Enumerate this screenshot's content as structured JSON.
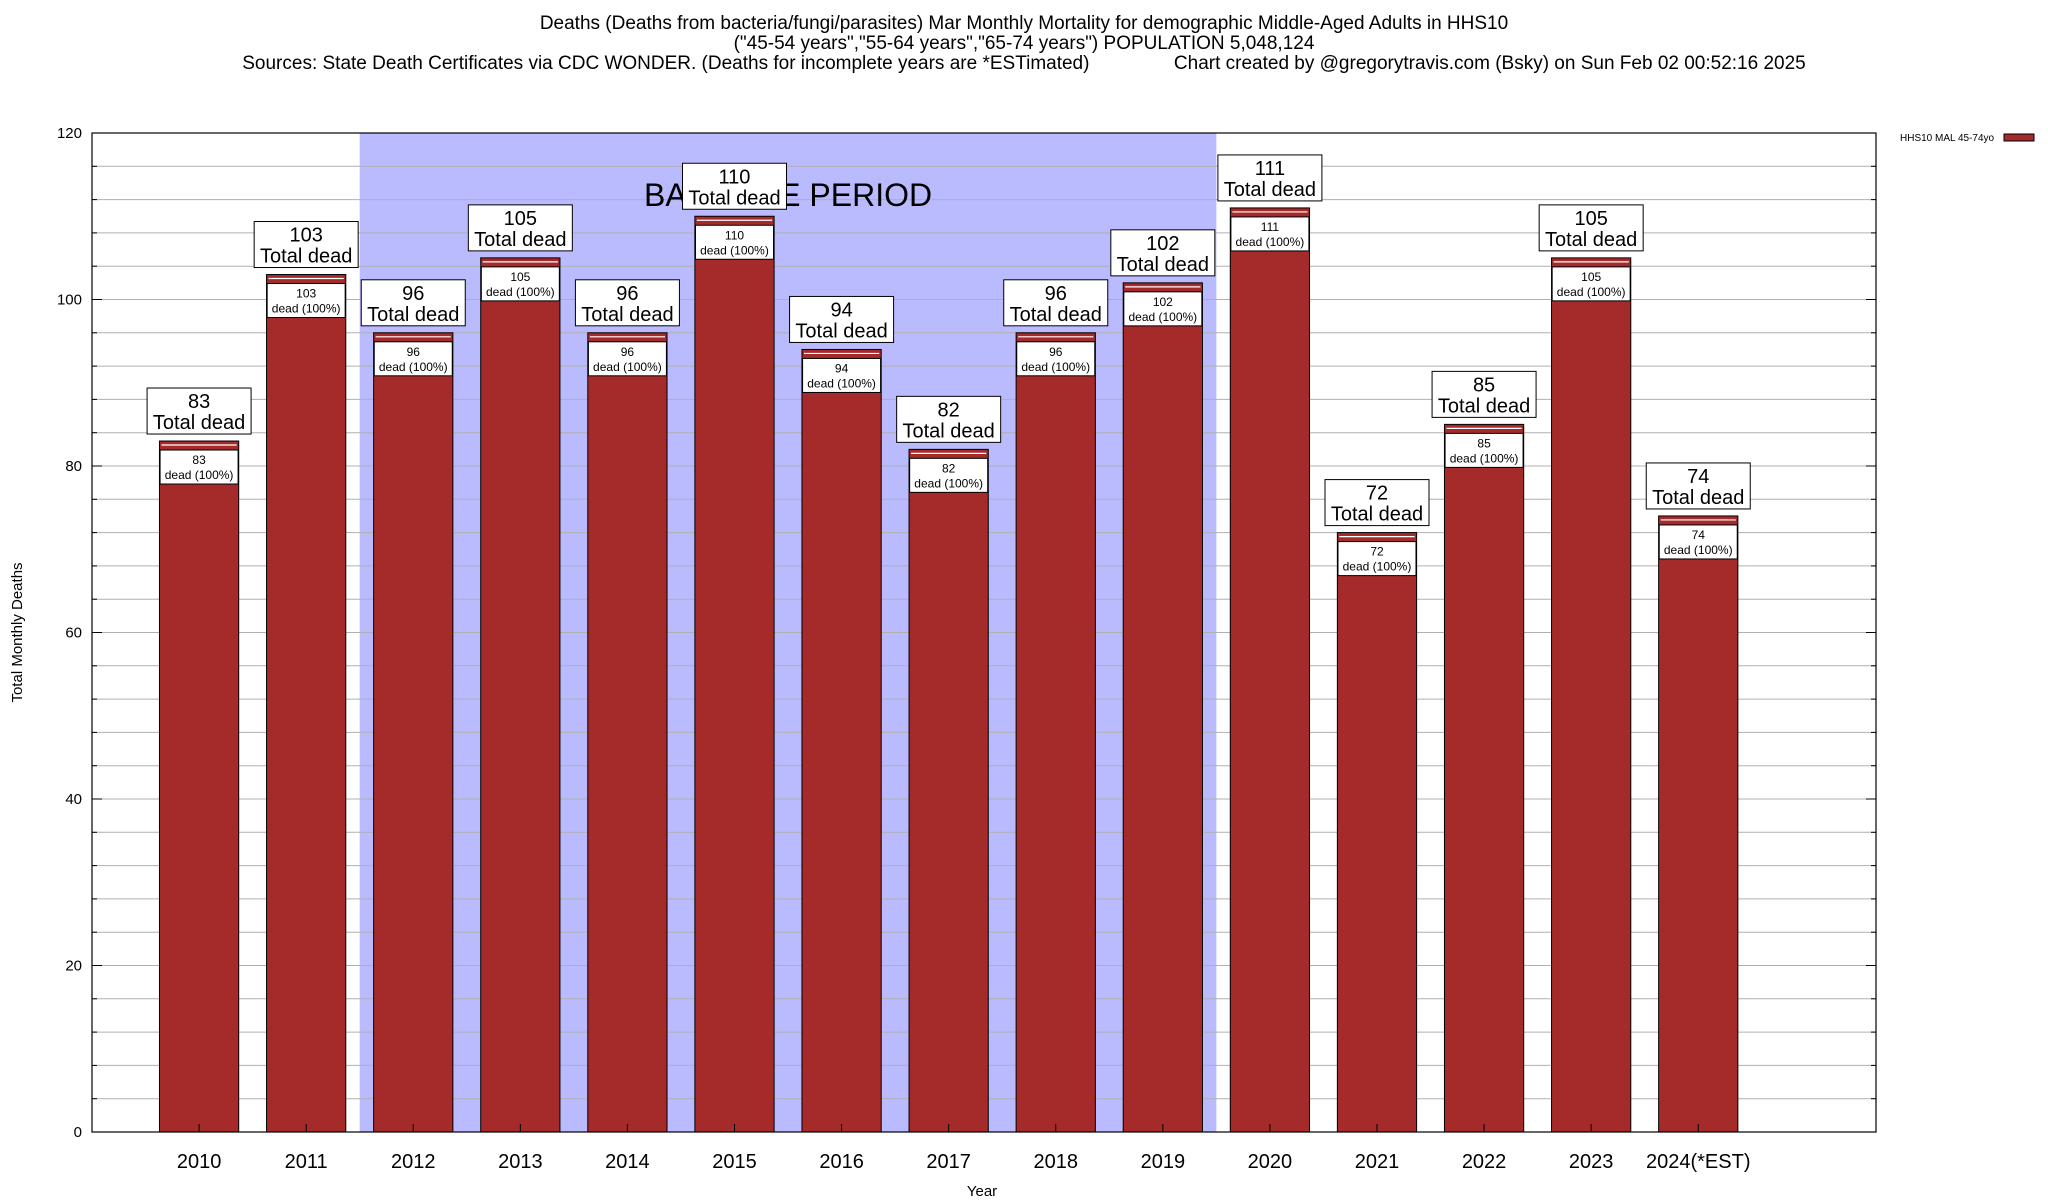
{
  "title": {
    "line1": "Deaths (Deaths from bacteria/fungi/parasites) Mar Monthly Mortality for demographic Middle-Aged Adults in HHS10",
    "line2": "(\"45-54 years\",\"55-64 years\",\"65-74 years\") POPULATION 5,048,124",
    "line3": "Sources: State Death Certificates via CDC WONDER. (Deaths for incomplete years are *ESTimated)                Chart created by @gregorytravis.com (Bsky) on Sun Feb 02 00:52:16 2025"
  },
  "colors": {
    "bar": "#a52a2a",
    "baseline_shade": "#babaff",
    "grid": "#b0b0b0"
  },
  "chart_data": {
    "type": "bar",
    "title": "Deaths (Deaths from bacteria/fungi/parasites) Mar Monthly Mortality for demographic Middle-Aged Adults in HHS10",
    "xlabel": "Year",
    "ylabel": "Total Monthly Deaths",
    "ylim": [
      0,
      120
    ],
    "yticks": [
      0,
      20,
      40,
      60,
      80,
      100,
      120
    ],
    "grid": true,
    "legend_position": "top-right",
    "categories": [
      "2010",
      "2011",
      "2012",
      "2013",
      "2014",
      "2015",
      "2016",
      "2017",
      "2018",
      "2019",
      "2020",
      "2021",
      "2022",
      "2023",
      "2024(*EST)"
    ],
    "series": [
      {
        "name": "HHS10 MAL 45-74yo",
        "values": [
          83,
          103,
          96,
          105,
          96,
          110,
          94,
          82,
          96,
          102,
          111,
          72,
          85,
          105,
          74
        ]
      }
    ],
    "top_label_suffix": "Total dead",
    "inner_label_suffix": "dead (100%)",
    "baseline_period": {
      "label": "BASELINE PERIOD",
      "start": "2012",
      "end": "2019"
    }
  }
}
